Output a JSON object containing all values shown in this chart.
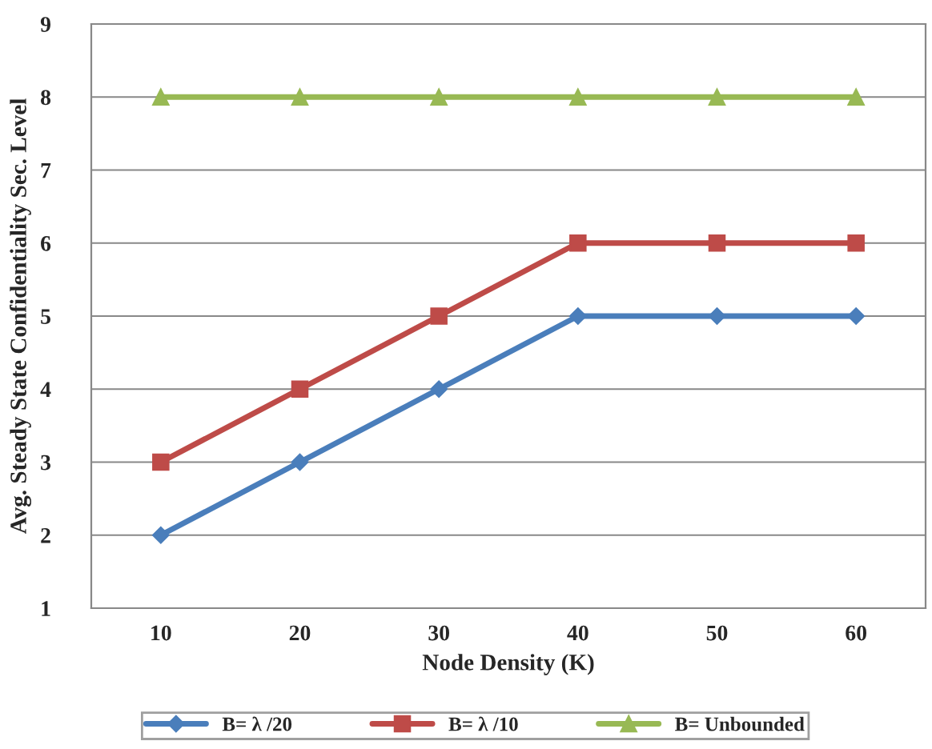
{
  "chart_data": {
    "type": "line",
    "xlabel": "Node Density (K)",
    "ylabel": "Avg. Steady State Confidentiality Sec. Level",
    "categories": [
      "10",
      "20",
      "30",
      "40",
      "50",
      "60"
    ],
    "series": [
      {
        "name": "B= λ /20",
        "color": "#4a7ebb",
        "marker": "diamond",
        "values": [
          2,
          3,
          4,
          5,
          5,
          5
        ]
      },
      {
        "name": "B= λ /10",
        "color": "#be4b48",
        "marker": "square",
        "values": [
          3,
          4,
          5,
          6,
          6,
          6
        ]
      },
      {
        "name": "B= Unbounded",
        "color": "#98b954",
        "marker": "triangle",
        "values": [
          8,
          8,
          8,
          8,
          8,
          8
        ]
      }
    ],
    "ylim": [
      1,
      9
    ],
    "yticks": [
      1,
      2,
      3,
      4,
      5,
      6,
      7,
      8,
      9
    ],
    "grid": "y",
    "legend": "bottom",
    "line_style": "solid"
  }
}
